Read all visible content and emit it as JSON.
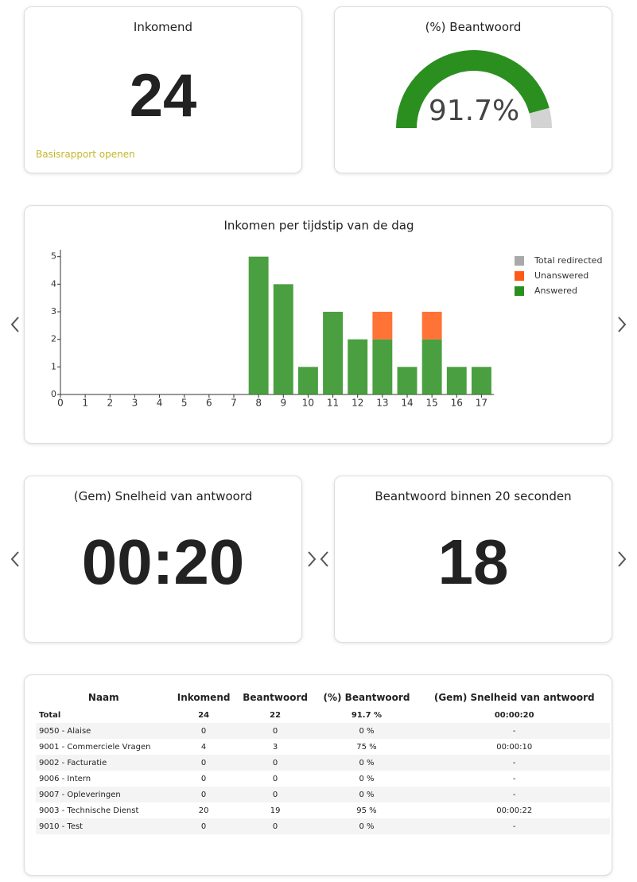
{
  "cards": [
    {
      "title": "Inkomend",
      "value": "24",
      "link": "Basisrapport openen"
    },
    {
      "title": "(Gem) Snelheid van antwoord",
      "value": "00:20"
    },
    {
      "title": "Beantwoord binnen 20 seconden",
      "value": "18"
    }
  ],
  "gauge": {
    "title": "(%) Beantwoord",
    "value": 91.7,
    "value_label": "91.7%",
    "colors": [
      "#2a8f1f",
      "#d3d3d3"
    ]
  },
  "chart_data": {
    "type": "bar",
    "stacked": true,
    "title": "Inkomen per tijdstip van de dag",
    "x": [
      0,
      1,
      2,
      3,
      4,
      5,
      6,
      7,
      8,
      9,
      10,
      11,
      12,
      13,
      14,
      15,
      16,
      17
    ],
    "series": [
      {
        "name": "Answered",
        "color": "#2a8f1f",
        "values": [
          0,
          0,
          0,
          0,
          0,
          0,
          0,
          0,
          5,
          4,
          1,
          3,
          2,
          2,
          1,
          2,
          1,
          1
        ]
      },
      {
        "name": "Unanswered",
        "color": "#ff5a14",
        "values": [
          0,
          0,
          0,
          0,
          0,
          0,
          0,
          0,
          0,
          0,
          0,
          0,
          0,
          1,
          0,
          1,
          0,
          0
        ]
      },
      {
        "name": "Total redirected",
        "color": "#a9a9a9",
        "values": [
          0,
          0,
          0,
          0,
          0,
          0,
          0,
          0,
          0,
          0,
          0,
          0,
          0,
          0,
          0,
          0,
          0,
          0
        ]
      }
    ],
    "xlim": [
      0,
      17.5
    ],
    "xticks": [
      0,
      1,
      2,
      3,
      4,
      5,
      6,
      7,
      8,
      9,
      10,
      11,
      12,
      13,
      14,
      15,
      16,
      17
    ],
    "ylim": [
      0,
      5.25
    ],
    "yticks": [
      0,
      1,
      2,
      3,
      4,
      5
    ],
    "legend": "top-right"
  },
  "table": {
    "header": [
      "Naam",
      "Inkomend",
      "Beantwoord",
      "(%) Beantwoord",
      "(Gem) Snelheid van antwoord"
    ],
    "rows": [
      [
        "Total",
        "24",
        "22",
        "91.7 %",
        "00:00:20"
      ],
      [
        "9050 - Alaise",
        "0",
        "0",
        "0 %",
        "-"
      ],
      [
        "9001 - Commerciele Vragen",
        "4",
        "3",
        "75 %",
        "00:00:10"
      ],
      [
        "9002 - Facturatie",
        "0",
        "0",
        "0 %",
        "-"
      ],
      [
        "9006 - Intern",
        "0",
        "0",
        "0 %",
        "-"
      ],
      [
        "9007 - Opleveringen",
        "0",
        "0",
        "0 %",
        "-"
      ],
      [
        "9003 - Technische Dienst",
        "20",
        "19",
        "95 %",
        "00:00:22"
      ],
      [
        "9010 - Test",
        "0",
        "0",
        "0 %",
        "-"
      ]
    ]
  }
}
